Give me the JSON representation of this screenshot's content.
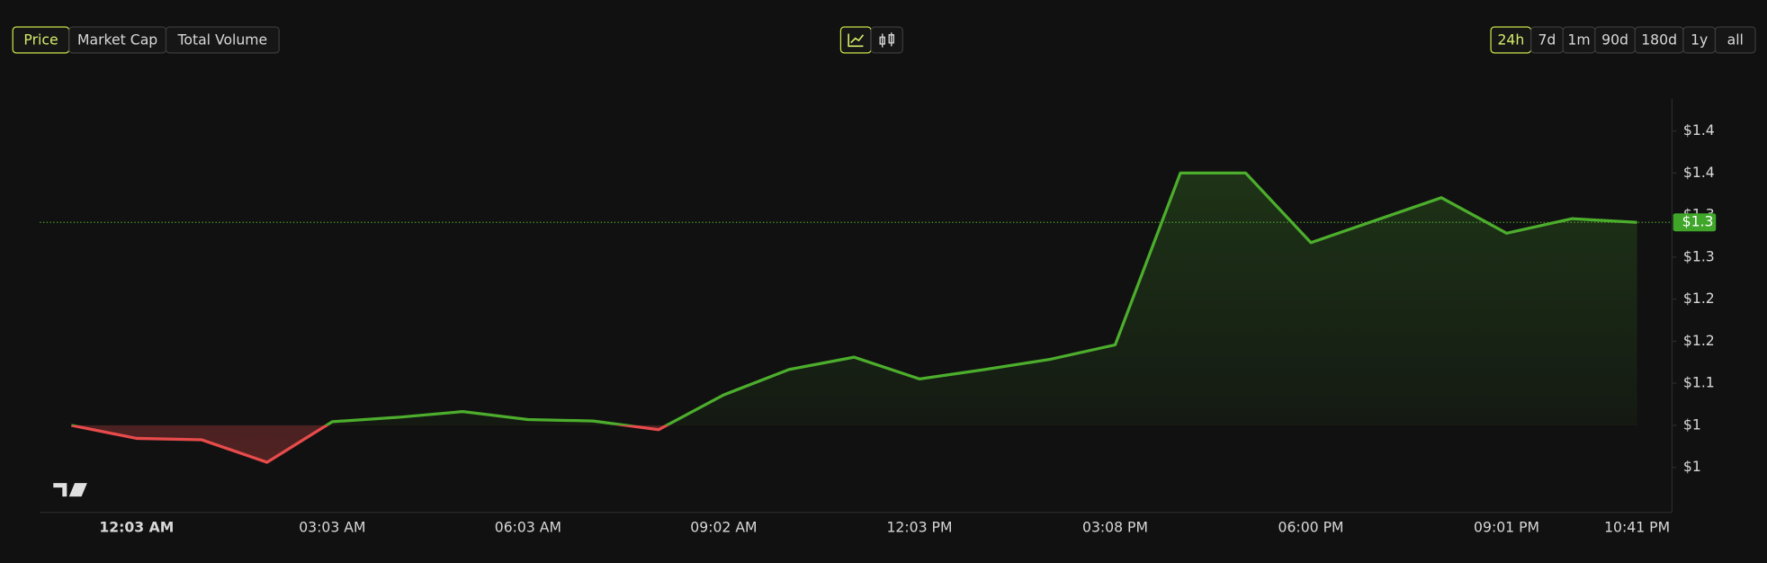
{
  "toolbar": {
    "metrics": [
      "Price",
      "Market Cap",
      "Total Volume"
    ],
    "selected_metric": 0,
    "ranges": [
      "24h",
      "7d",
      "1m",
      "90d",
      "180d",
      "1y",
      "all"
    ],
    "selected_range": 0
  },
  "chart_data": {
    "type": "line",
    "categories": [
      null,
      "12:03 AM",
      null,
      null,
      "03:03 AM",
      null,
      null,
      "06:03 AM",
      null,
      null,
      "09:02 AM",
      null,
      null,
      "12:03 PM",
      null,
      null,
      "03:08 PM",
      null,
      null,
      "06:00 PM",
      null,
      null,
      "09:01 PM",
      null,
      "10:41 PM"
    ],
    "values": [
      1.04,
      1.022,
      1.02,
      0.989,
      1.045,
      1.051,
      1.059,
      1.048,
      1.046,
      1.034,
      1.082,
      1.117,
      1.134,
      1.104,
      1.117,
      1.131,
      1.151,
      1.388,
      1.388,
      1.292,
      1.323,
      1.354,
      1.305,
      1.325,
      1.32
    ],
    "baseline": 1.04,
    "up_color": "#4cae2c",
    "down_color": "#e84b4b",
    "current_price": {
      "value": 1.32,
      "label": "$1.3"
    },
    "ylim": [
      0.92,
      1.49
    ],
    "yticks": [
      {
        "value": 0.982,
        "label": "$1"
      },
      {
        "value": 1.04,
        "label": "$1"
      },
      {
        "value": 1.098,
        "label": "$1.1"
      },
      {
        "value": 1.156,
        "label": "$1.2"
      },
      {
        "value": 1.214,
        "label": "$1.2"
      },
      {
        "value": 1.272,
        "label": "$1.3"
      },
      {
        "value": 1.33,
        "label": "$1.3"
      },
      {
        "value": 1.388,
        "label": "$1.4"
      },
      {
        "value": 1.446,
        "label": "$1.4"
      }
    ]
  }
}
